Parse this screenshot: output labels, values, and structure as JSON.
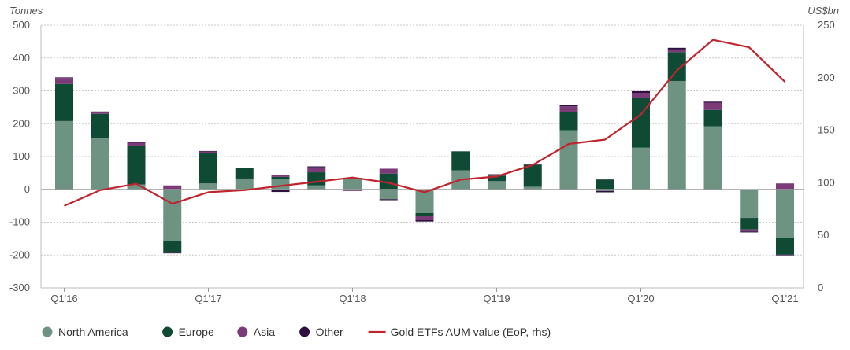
{
  "chart_data": {
    "type": "bar",
    "stacked": true,
    "grid": true,
    "legend_position": "bottom",
    "left_axis_unit": "Tonnes",
    "right_axis_unit": "US$bn",
    "ylim": [
      -300,
      500
    ],
    "y_ticks": [
      500,
      400,
      300,
      200,
      100,
      0,
      -100,
      -200,
      -300
    ],
    "y2lim": [
      0,
      250
    ],
    "y2_ticks": [
      250,
      200,
      150,
      100,
      50,
      0
    ],
    "x_tick_labels": [
      "Q1'16",
      "Q1'17",
      "Q1'18",
      "Q1'19",
      "Q1'20",
      "Q1'21"
    ],
    "quarters": [
      "Q1'16",
      "Q2'16",
      "Q3'16",
      "Q4'16",
      "Q1'17",
      "Q2'17",
      "Q3'17",
      "Q4'17",
      "Q1'18",
      "Q2'18",
      "Q3'18",
      "Q4'18",
      "Q1'19",
      "Q2'19",
      "Q3'19",
      "Q4'19",
      "Q1'20",
      "Q2'20",
      "Q3'20",
      "Q4'20",
      "Q1'21"
    ],
    "series": [
      {
        "name": "North America",
        "color": "#6e9383",
        "values": [
          208,
          155,
          15,
          -158,
          18,
          33,
          30,
          12,
          30,
          -30,
          -72,
          58,
          25,
          8,
          180,
          -5,
          127,
          330,
          192,
          -87,
          -147
        ]
      },
      {
        "name": "Europe",
        "color": "#0f4a35",
        "values": [
          113,
          75,
          117,
          -35,
          92,
          32,
          8,
          40,
          5,
          48,
          -10,
          58,
          17,
          67,
          55,
          30,
          152,
          88,
          50,
          -35,
          -52
        ]
      },
      {
        "name": "Asia",
        "color": "#7b3a78",
        "values": [
          18,
          6,
          10,
          12,
          5,
          0,
          5,
          15,
          -5,
          15,
          -12,
          0,
          3,
          3,
          18,
          3,
          15,
          8,
          22,
          -6,
          18
        ]
      },
      {
        "name": "Other",
        "color": "#2d0f40",
        "values": [
          2,
          1,
          3,
          -2,
          2,
          0,
          -8,
          3,
          0,
          -3,
          -4,
          0,
          1,
          0,
          4,
          -4,
          5,
          5,
          3,
          -3,
          -2
        ]
      }
    ],
    "line_series": {
      "name": "Gold ETFs AUM value (EoP, rhs)",
      "color": "#c0252f",
      "axis": "right",
      "values": [
        78,
        93,
        99,
        80,
        91,
        93,
        97,
        101,
        105,
        100,
        91,
        103,
        106,
        117,
        137,
        141,
        165,
        207,
        236,
        229,
        196
      ]
    }
  }
}
